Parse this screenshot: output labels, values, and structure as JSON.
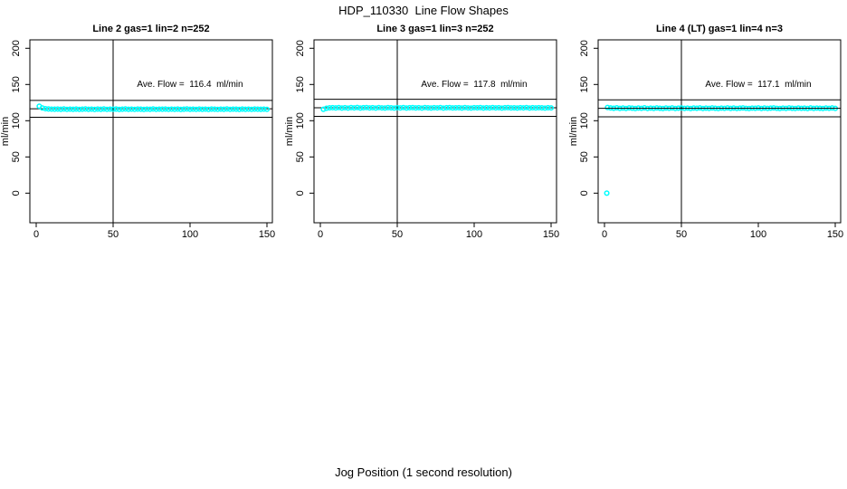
{
  "page": {
    "title": "HDP_110330  Line Flow Shapes",
    "xlabel": "Jog Position (1 second resolution)",
    "background": "#ffffff",
    "point_color": "#00ffff",
    "axis_color": "#000000"
  },
  "chart_data": [
    {
      "type": "scatter",
      "title": "Line 2 gas=1 lin=2 n=252",
      "annotation": "Ave. Flow =  116.4  ml/min",
      "ave_flow": 116.4,
      "n": 252,
      "ylabel": "ml/min",
      "x_ticks": [
        0,
        50,
        100,
        150
      ],
      "y_ticks": [
        0,
        50,
        100,
        150,
        200
      ],
      "xlim": [
        0,
        150
      ],
      "ylim": [
        0,
        200
      ],
      "grid": false,
      "vline_x": 50,
      "hlines": [
        104.8,
        128.0
      ],
      "mean_line": 116.4,
      "mean_line_top": false,
      "series": [
        {
          "name": "flow",
          "x_start": 2,
          "x_step": 2,
          "y": [
            120,
            117.6,
            116.6,
            116.2,
            116,
            115.9,
            116.1,
            115.8,
            116.2,
            115.7,
            116,
            115.8,
            116.1,
            115.7,
            115.9,
            116.2,
            115.8,
            116,
            115.6,
            116.1,
            115.8,
            116.2,
            115.7,
            116,
            115.9,
            116.1,
            115.6,
            115.9,
            116.2,
            115.8,
            116,
            115.7,
            116.1,
            115.9,
            115.6,
            116,
            115.8,
            116.2,
            115.7,
            116,
            115.9,
            116.1,
            115.7,
            116,
            115.8,
            116.1,
            115.6,
            115.9,
            116.2,
            115.8,
            116,
            115.7,
            116.1,
            115.8,
            116,
            115.6,
            116.1,
            115.9,
            115.7,
            116,
            115.8,
            116.2,
            115.7,
            116,
            115.9,
            115.6,
            116.1,
            115.8,
            116,
            115.7,
            116.1,
            115.9,
            115.8,
            116,
            115.7
          ],
          "extra_points": []
        }
      ]
    },
    {
      "type": "scatter",
      "title": "Line 3 gas=1 lin=3 n=252",
      "annotation": "Ave. Flow =  117.8  ml/min",
      "ave_flow": 117.8,
      "n": 252,
      "ylabel": "ml/min",
      "x_ticks": [
        0,
        50,
        100,
        150
      ],
      "y_ticks": [
        0,
        50,
        100,
        150,
        200
      ],
      "xlim": [
        0,
        150
      ],
      "ylim": [
        0,
        200
      ],
      "grid": false,
      "vline_x": 50,
      "hlines": [
        106.0,
        129.6
      ],
      "mean_line": 117.8,
      "mean_line_top": false,
      "series": [
        {
          "name": "flow",
          "x_start": 2,
          "x_step": 2,
          "y": [
            115.8,
            117.2,
            117.8,
            118,
            117.6,
            118.2,
            117.5,
            118,
            117.4,
            118.1,
            117.7,
            118.3,
            117.5,
            117.9,
            118.2,
            117.6,
            118,
            117.4,
            118.2,
            117.7,
            117.5,
            118.1,
            117.8,
            117.4,
            118,
            117.6,
            118.2,
            117.5,
            117.9,
            118.1,
            117.6,
            118,
            117.4,
            118.2,
            117.8,
            117.5,
            118,
            117.7,
            118.2,
            117.4,
            117.9,
            118.1,
            117.6,
            117.8,
            118,
            117.5,
            118.2,
            117.7,
            117.4,
            118,
            117.8,
            118.1,
            117.5,
            117.9,
            117.6,
            118.2,
            117.7,
            118,
            117.4,
            117.9,
            118.1,
            117.6,
            117.8,
            117.5,
            118,
            117.7,
            118.2,
            117.5,
            117.9,
            117.6,
            118,
            117.8,
            117.4,
            117.9,
            117.7
          ],
          "extra_points": []
        }
      ]
    },
    {
      "type": "scatter",
      "title": "Line 4 (LT) gas=1 lin=4 n=3",
      "annotation": "Ave. Flow =  117.1  ml/min",
      "ave_flow": 117.1,
      "n": 3,
      "ylabel": "ml/min",
      "x_ticks": [
        0,
        50,
        100,
        150
      ],
      "y_ticks": [
        0,
        50,
        100,
        150,
        200
      ],
      "xlim": [
        0,
        150
      ],
      "ylim": [
        0,
        200
      ],
      "grid": false,
      "vline_x": 50,
      "hlines": [
        105.4,
        128.8
      ],
      "mean_line": 117.1,
      "mean_line_top": true,
      "series": [
        {
          "name": "flow",
          "x_start": 2,
          "x_step": 2,
          "y": [
            118.3,
            117.6,
            117.2,
            117.8,
            117,
            117.5,
            116.9,
            117.7,
            117.3,
            116.8,
            117.5,
            117.1,
            117.8,
            116.9,
            117.4,
            117,
            117.6,
            117.2,
            116.8,
            117.5,
            117.1,
            117.7,
            116.9,
            117.3,
            117.6,
            117,
            117.4,
            116.8,
            117.5,
            117.2,
            117.7,
            116.9,
            117.3,
            117,
            117.6,
            117.2,
            116.8,
            117.4,
            117.1,
            117.7,
            117,
            117.5,
            116.9,
            117.3,
            117.6,
            117.1,
            116.8,
            117.4,
            117.2,
            117.6,
            116.9,
            117.5,
            117,
            117.3,
            117.7,
            117.1,
            116.8,
            117.4,
            117,
            117.6,
            117.2,
            116.9,
            117.5,
            117.1,
            117.3,
            116.8,
            117.6,
            117,
            117.4,
            117.2,
            116.9,
            117.5,
            117.1,
            117.6,
            117
          ],
          "extra_points": [
            [
              1.5,
              0
            ]
          ]
        }
      ]
    }
  ]
}
